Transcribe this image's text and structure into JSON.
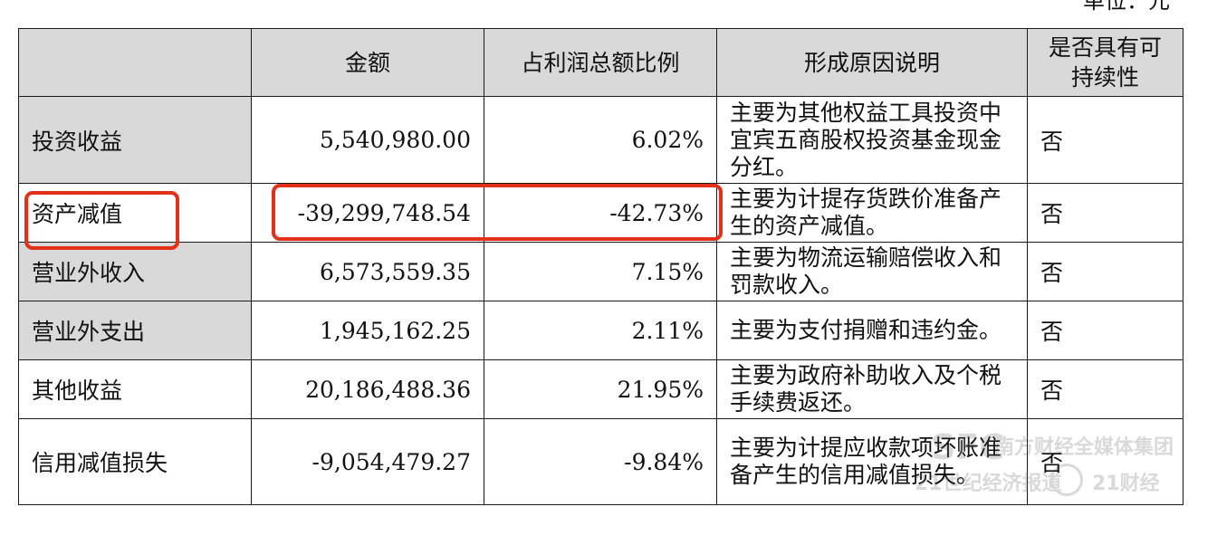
{
  "unit_label": "单位：元",
  "headers": [
    "",
    "金额",
    "占利润总额比例",
    "形成原因说明",
    "是否具有可持续性"
  ],
  "rows": [
    {
      "item": "投资收益",
      "amount": "5,540,980.00",
      "ratio": "6.02%",
      "reason": "主要为其他权益工具投资中宜宾五商股权投资基金现金分红。",
      "sustainable": "否"
    },
    {
      "item": "资产减值",
      "amount": "-39,299,748.54",
      "ratio": "-42.73%",
      "reason": "主要为计提存货跌价准备产生的资产减值。",
      "sustainable": "否"
    },
    {
      "item": "营业外收入",
      "amount": "6,573,559.35",
      "ratio": "7.15%",
      "reason": "主要为物流运输赔偿收入和罚款收入。",
      "sustainable": "否"
    },
    {
      "item": "营业外支出",
      "amount": "1,945,162.25",
      "ratio": "2.11%",
      "reason": "主要为支付捐赠和违约金。",
      "sustainable": "否"
    },
    {
      "item": "其他收益",
      "amount": "20,186,488.36",
      "ratio": "21.95%",
      "reason": "主要为政府补助收入及个税手续费返还。",
      "sustainable": "否"
    },
    {
      "item": "信用减值损失",
      "amount": "-9,054,479.27",
      "ratio": "-9.84%",
      "reason": "主要为计提应收款项坏账准备产生的信用减值损失。",
      "sustainable": "否"
    }
  ],
  "watermark": {
    "line1": "南方财经全媒体集团",
    "line2": "21世纪经济报道",
    "badge": "21",
    "brand": "21财经"
  },
  "colors": {
    "highlight": "#e2301a",
    "header_bg": "#d9d9d9"
  }
}
